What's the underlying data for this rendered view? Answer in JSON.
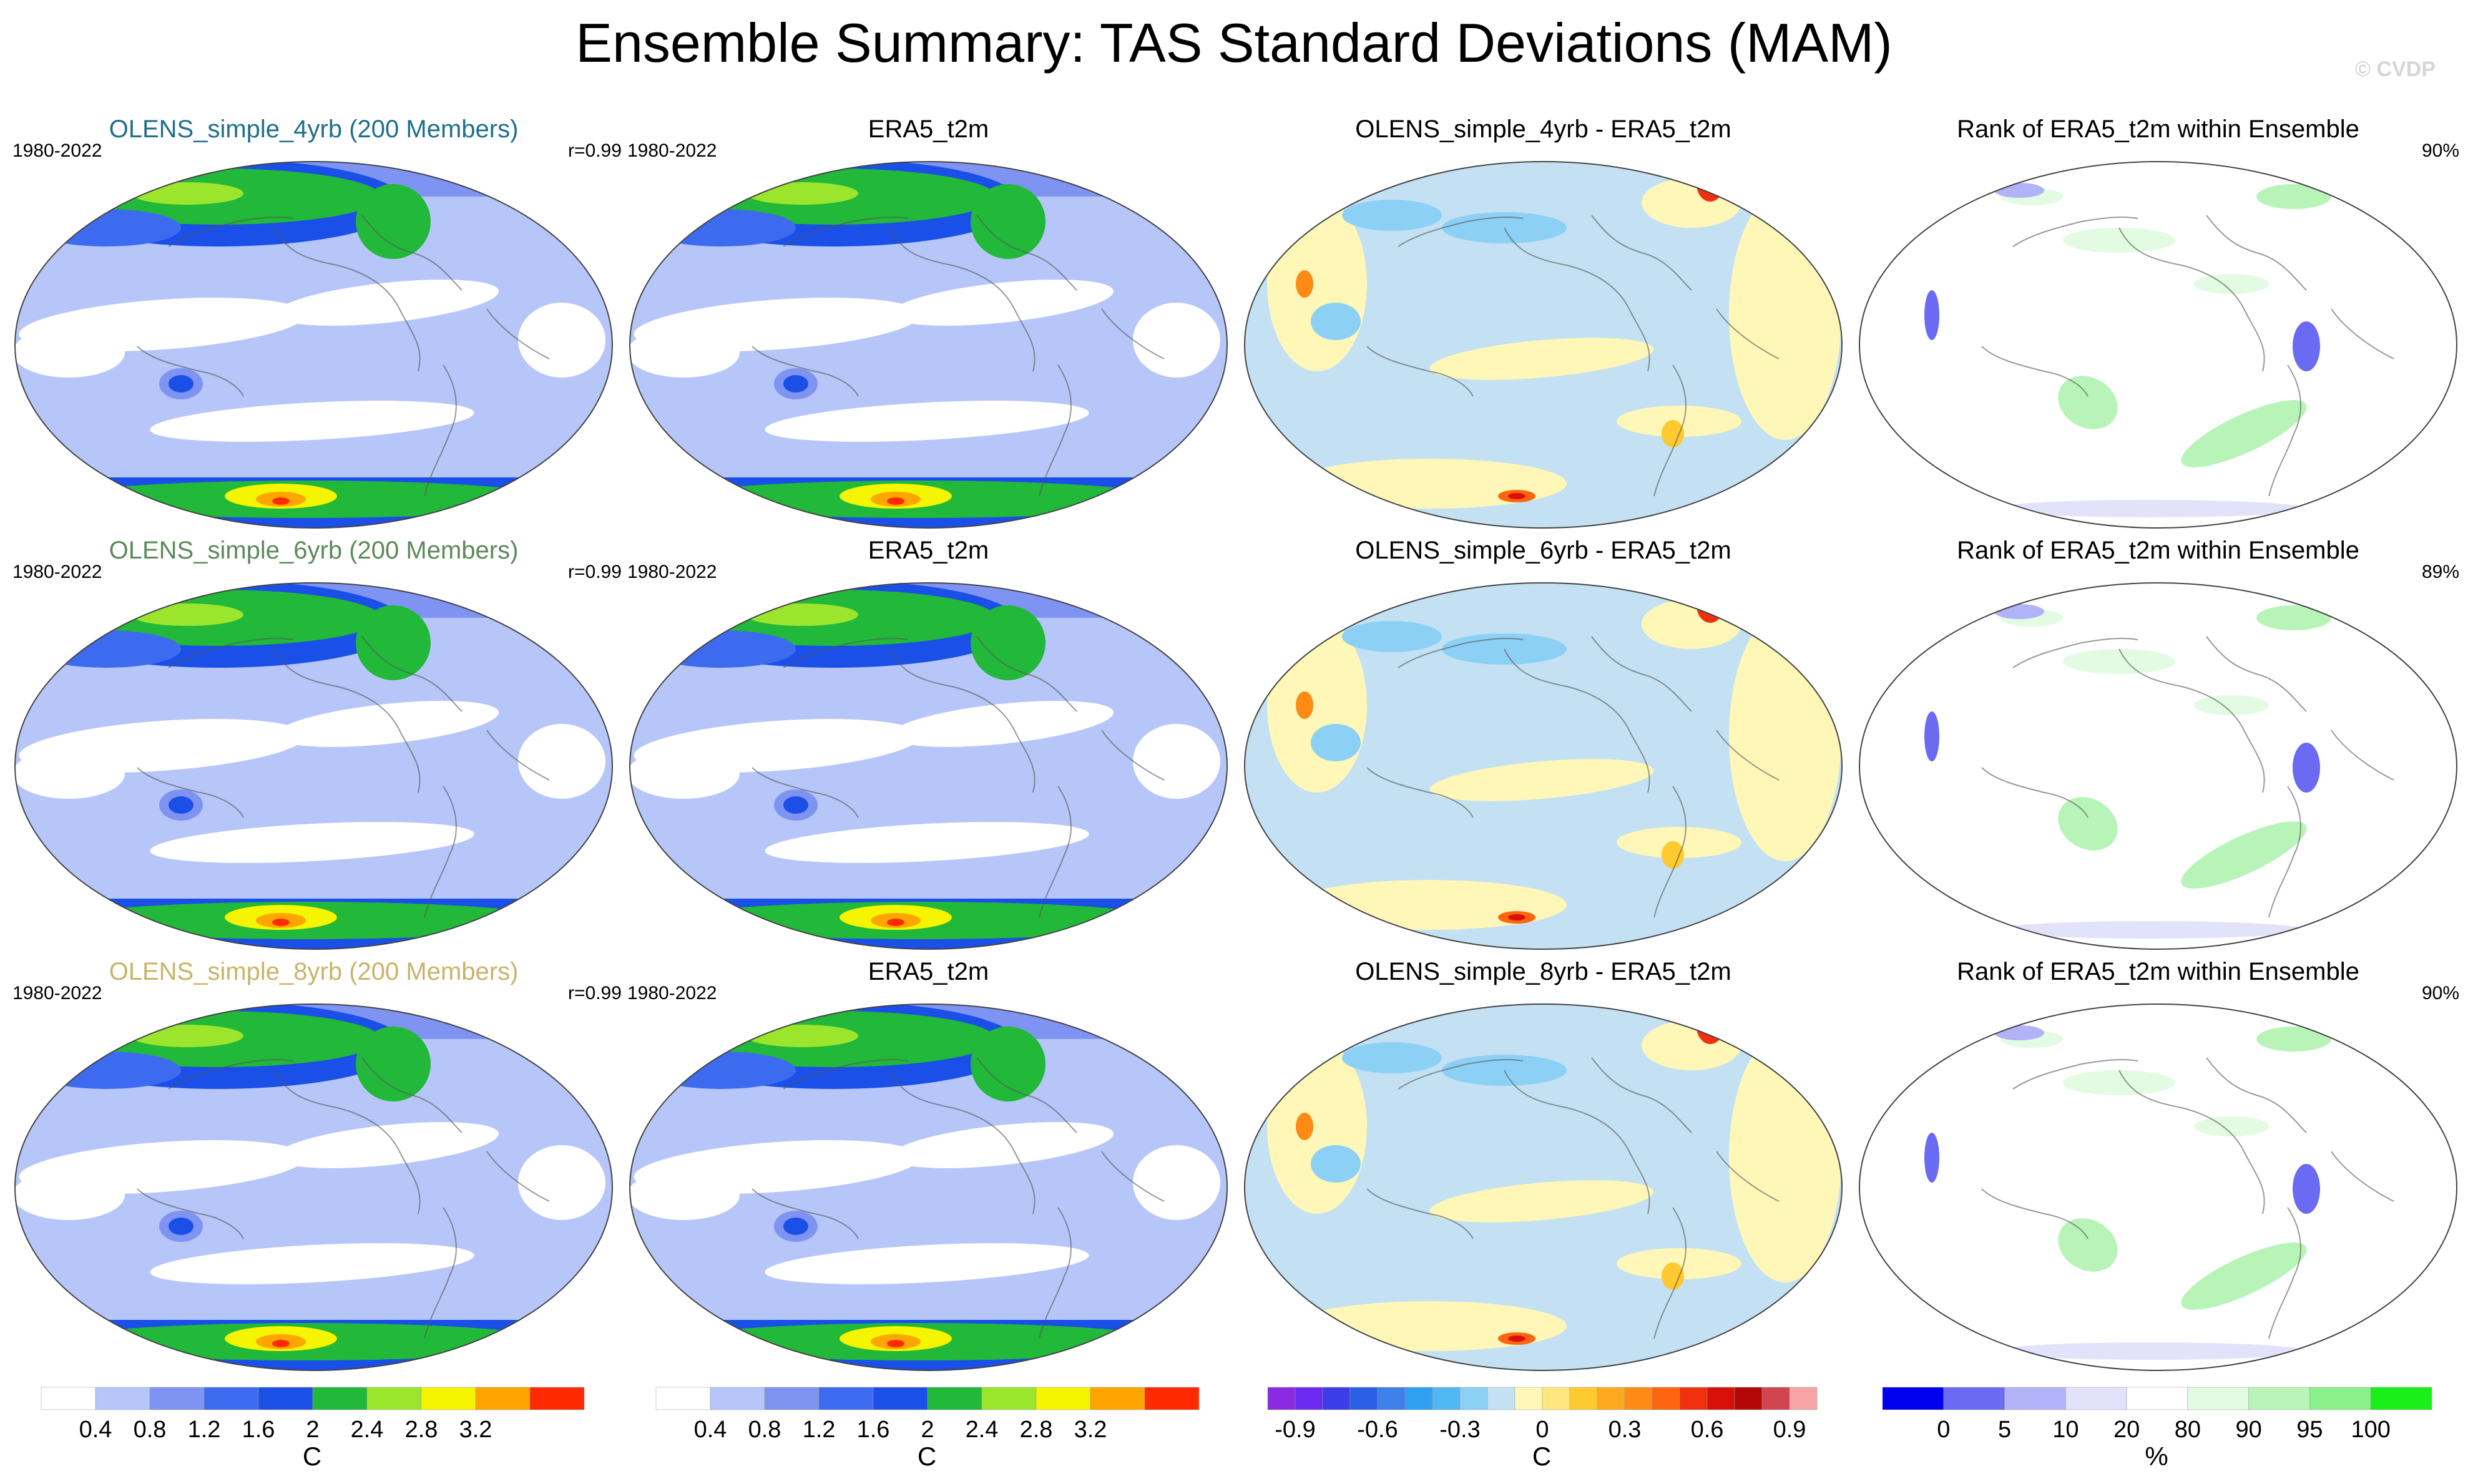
{
  "title": "Ensemble Summary: TAS Standard Deviations (MAM)",
  "copyright": "© CVDP",
  "period": "1980-2022",
  "rows": [
    {
      "title": "OLENS_simple_4yrb (200 Members)",
      "title_color": "#1f6f8b",
      "r": "r=0.99",
      "diff_title": "OLENS_simple_4yrb - ERA5_t2m",
      "rank_pct": "90%"
    },
    {
      "title": "OLENS_simple_6yrb (200 Members)",
      "title_color": "#5b8a5b",
      "r": "r=0.99",
      "diff_title": "OLENS_simple_6yrb - ERA5_t2m",
      "rank_pct": "89%"
    },
    {
      "title": "OLENS_simple_8yrb (200 Members)",
      "title_color": "#c8b46a",
      "r": "r=0.99",
      "diff_title": "OLENS_simple_8yrb - ERA5_t2m",
      "rank_pct": "90%"
    }
  ],
  "obs_title": "ERA5_t2m",
  "rank_title": "Rank of ERA5_t2m within Ensemble",
  "chart_data": [
    {
      "type": "heatmap",
      "name": "std_colorbar",
      "levels": [
        "0.4",
        "0.8",
        "1.2",
        "1.6",
        "2",
        "2.4",
        "2.8",
        "3.2"
      ],
      "colors": [
        "#ffffff",
        "#b6c6f8",
        "#7f94f2",
        "#3d6bf0",
        "#1a4fe8",
        "#22b83a",
        "#9be62d",
        "#f5f500",
        "#ffa500",
        "#ff2a00"
      ],
      "unit": "C"
    },
    {
      "type": "heatmap",
      "name": "diff_colorbar",
      "levels": [
        "-0.9",
        "-0.6",
        "-0.3",
        "0",
        "0.3",
        "0.6",
        "0.9"
      ],
      "colors": [
        "#8a2be2",
        "#6a2af0",
        "#3c3ce8",
        "#2a5fe6",
        "#3f7fe8",
        "#2fa0f0",
        "#4fb8f2",
        "#8dd0f5",
        "#c3e1f3",
        "#fff7b8",
        "#ffe680",
        "#ffc930",
        "#ffa920",
        "#ff8a15",
        "#ff6410",
        "#f0300f",
        "#d8100a",
        "#b40808",
        "#d0454f",
        "#f5a5a5"
      ],
      "unit": "C"
    },
    {
      "type": "heatmap",
      "name": "rank_colorbar",
      "levels": [
        "0",
        "5",
        "10",
        "20",
        "80",
        "90",
        "95",
        "100"
      ],
      "colors": [
        "#0000ee",
        "#6a6af3",
        "#b2b2f8",
        "#e2e2fb",
        "#ffffff",
        "#e2fbe2",
        "#b8f4b8",
        "#8af08a",
        "#1aef1a"
      ],
      "unit": "%"
    }
  ]
}
